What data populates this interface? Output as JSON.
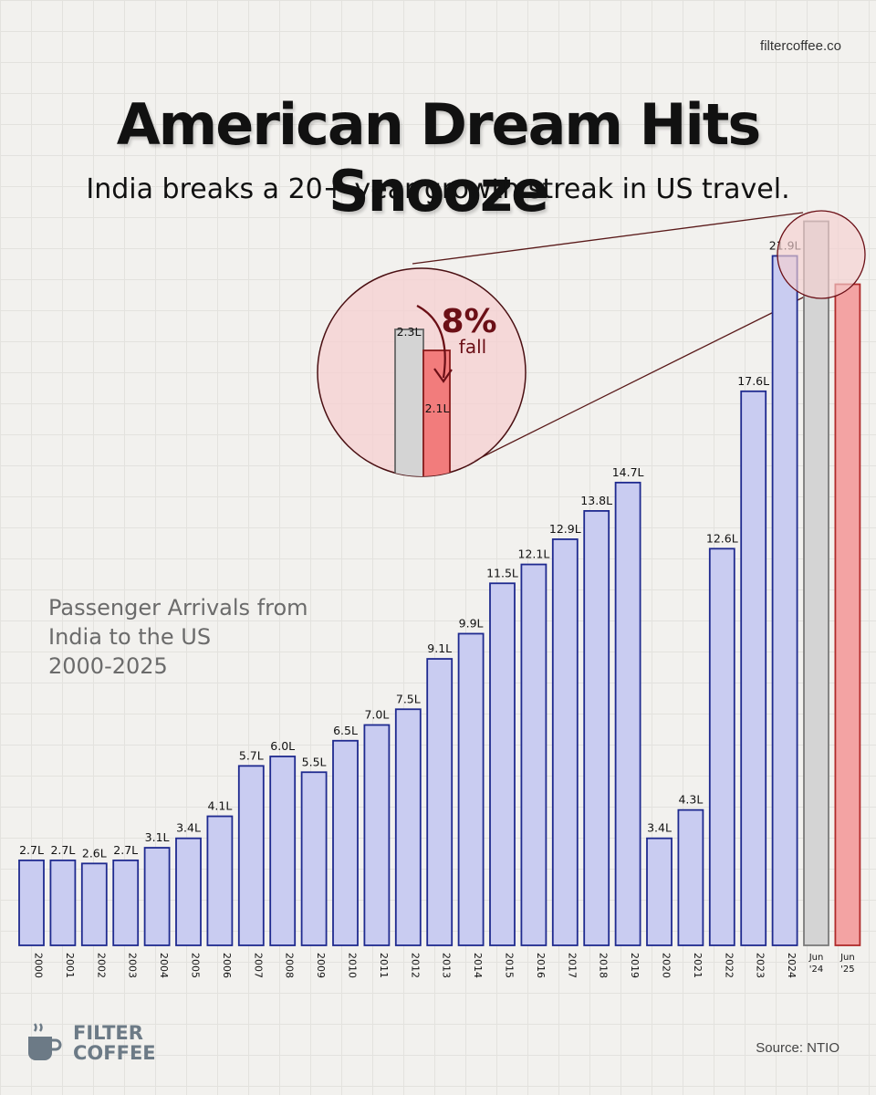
{
  "site": "filtercoffee.co",
  "title": "American Dream Hits Snooze",
  "subtitle": "India breaks a 20+ year growth streak in US travel.",
  "side_label": {
    "line1": "Passenger Arrivals from",
    "line2": "India to the US",
    "line3": "2000-2025"
  },
  "callout": {
    "percent": "8%",
    "word": "fall",
    "before_label": "2.3L",
    "after_label": "2.1L"
  },
  "source": "Source: NTIO",
  "logo": {
    "line1": "FILTER",
    "line2": "COFFEE",
    "icon": "coffee-cup-icon"
  },
  "colors": {
    "bar_fill": "#c9ccf1",
    "bar_stroke": "#1f2a8f",
    "jun24_fill": "#d4d4d4",
    "jun25_fill": "#f3a3a3",
    "callout_circle": "#f5cfd0",
    "callout_accent": "#6b0f16"
  },
  "chart_data": {
    "type": "bar",
    "title": "Passenger Arrivals from India to the US 2000-2025",
    "categories": [
      "2000",
      "2001",
      "2002",
      "2003",
      "2004",
      "2005",
      "2006",
      "2007",
      "2008",
      "2009",
      "2010",
      "2011",
      "2012",
      "2013",
      "2014",
      "2015",
      "2016",
      "2017",
      "2018",
      "2019",
      "2020",
      "2021",
      "2022",
      "2023",
      "2024",
      "Jun '24",
      "Jun '25"
    ],
    "values": [
      2.7,
      2.7,
      2.6,
      2.7,
      3.1,
      3.4,
      4.1,
      5.7,
      6.0,
      5.5,
      6.5,
      7.0,
      7.5,
      9.1,
      9.9,
      11.5,
      12.1,
      12.9,
      13.8,
      14.7,
      3.4,
      4.3,
      12.6,
      17.6,
      21.9,
      2.3,
      2.1
    ],
    "labels": [
      "2.7L",
      "2.7L",
      "2.6L",
      "2.7L",
      "3.1L",
      "3.4L",
      "4.1L",
      "5.7L",
      "6.0L",
      "5.5L",
      "6.5L",
      "7.0L",
      "7.5L",
      "9.1L",
      "9.9L",
      "11.5L",
      "12.1L",
      "12.9L",
      "13.8L",
      "14.7L",
      "3.4L",
      "4.3L",
      "12.6L",
      "17.6L",
      "21.9L",
      "",
      ""
    ],
    "units": "lakh"
  }
}
